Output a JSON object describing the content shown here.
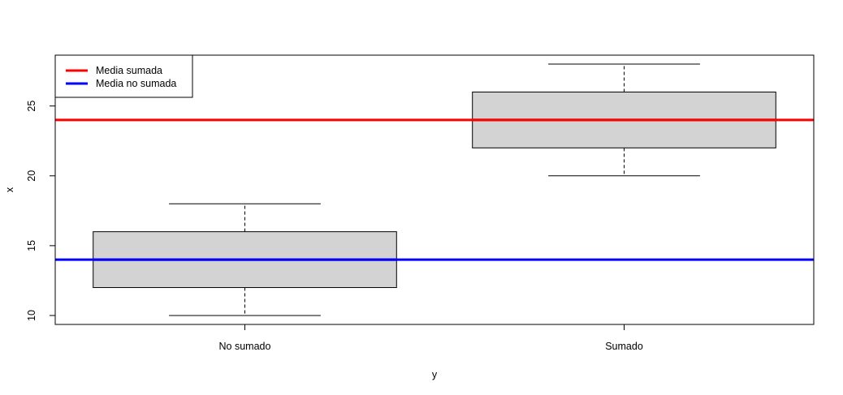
{
  "chart_data": {
    "type": "box",
    "title": "",
    "xlabel": "y",
    "ylabel": "x",
    "categories": [
      "No sumado",
      "Sumado"
    ],
    "boxes": [
      {
        "category": "No sumado",
        "min": 10,
        "q1": 12,
        "median": 14,
        "q3": 16,
        "max": 18
      },
      {
        "category": "Sumado",
        "min": 20,
        "q1": 22,
        "median": 24,
        "q3": 26,
        "max": 28
      }
    ],
    "ylim": [
      9.36,
      28.64
    ],
    "yticks": [
      10,
      15,
      20,
      25
    ],
    "hlines": [
      {
        "name": "Media sumada",
        "value": 24,
        "color": "#ff0000"
      },
      {
        "name": "Media no sumada",
        "value": 14,
        "color": "#0000ff"
      }
    ],
    "legend": {
      "position": "top-left",
      "entries": [
        {
          "label": "Media sumada",
          "color": "#ff0000"
        },
        {
          "label": "Media no sumada",
          "color": "#0000ff"
        }
      ]
    },
    "box_fill": "#d3d3d3"
  }
}
